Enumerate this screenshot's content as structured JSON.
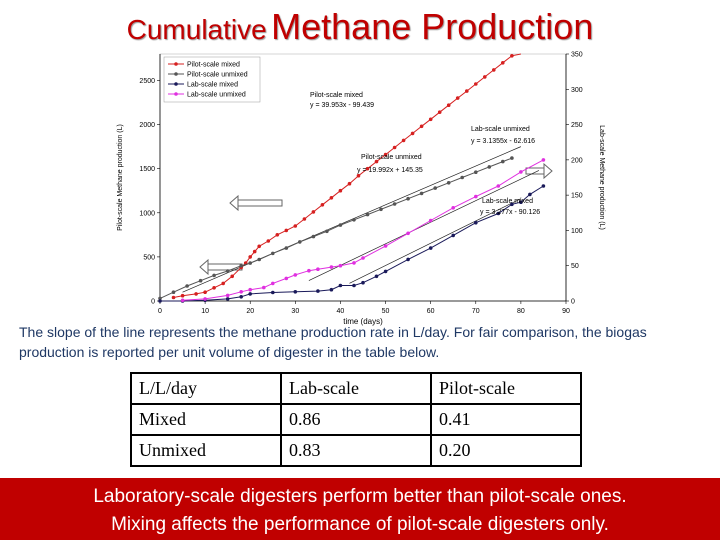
{
  "title": {
    "part1": "Cumulative",
    "part2": "Methane Production"
  },
  "chart_data": {
    "type": "line",
    "xlabel": "time (days)",
    "ylabel_left": "Pilot-scale Methane production (L)",
    "ylabel_right": "Lab-scale Methane production (L)",
    "xlim": [
      0,
      90
    ],
    "ylim_left": [
      0,
      2800
    ],
    "ylim_right": [
      0,
      350
    ],
    "xticks": [
      0,
      10,
      20,
      30,
      40,
      50,
      60,
      70,
      80,
      90
    ],
    "yticks_left": [
      0,
      500,
      1000,
      1500,
      2000,
      2500
    ],
    "yticks_right": [
      0,
      50,
      100,
      150,
      200,
      250,
      300,
      350
    ],
    "legend_position": "top-left",
    "series": [
      {
        "name": "Pilot-scale mixed",
        "axis": "left",
        "color": "#d62020",
        "x": [
          3,
          5,
          8,
          10,
          12,
          14,
          16,
          18,
          19,
          20,
          21,
          22,
          24,
          26,
          28,
          30,
          32,
          34,
          36,
          38,
          40,
          42,
          44,
          46,
          48,
          50,
          52,
          54,
          56,
          58,
          60,
          62,
          64,
          66,
          68,
          70,
          72,
          74,
          76,
          78,
          80
        ],
        "y": [
          40,
          60,
          80,
          100,
          150,
          200,
          280,
          380,
          430,
          500,
          560,
          620,
          680,
          750,
          800,
          850,
          930,
          1010,
          1090,
          1170,
          1250,
          1330,
          1420,
          1500,
          1580,
          1660,
          1740,
          1820,
          1900,
          1980,
          2060,
          2140,
          2220,
          2300,
          2380,
          2460,
          2540,
          2620,
          2700,
          2780,
          2860
        ]
      },
      {
        "name": "Pilot-scale unmixed",
        "axis": "left",
        "color": "#555555",
        "x": [
          0,
          3,
          6,
          9,
          12,
          15,
          18,
          20,
          22,
          25,
          28,
          31,
          34,
          37,
          40,
          43,
          46,
          49,
          52,
          55,
          58,
          61,
          64,
          67,
          70,
          73,
          76,
          78
        ],
        "y": [
          30,
          100,
          170,
          230,
          290,
          340,
          400,
          430,
          470,
          540,
          600,
          670,
          730,
          790,
          860,
          920,
          980,
          1040,
          1100,
          1160,
          1220,
          1280,
          1340,
          1400,
          1460,
          1520,
          1580,
          1620
        ]
      },
      {
        "name": "Lab-scale mixed",
        "axis": "right",
        "color": "#1a1a5a",
        "x": [
          0,
          5,
          10,
          15,
          18,
          20,
          25,
          30,
          35,
          38,
          40,
          43,
          45,
          48,
          50,
          55,
          60,
          65,
          70,
          75,
          78,
          80,
          82,
          85
        ],
        "y": [
          0,
          0,
          1,
          3,
          6,
          10,
          12,
          13,
          14,
          16,
          22,
          22,
          26,
          35,
          42,
          59,
          75,
          93,
          111,
          124,
          137,
          140,
          151,
          163
        ]
      },
      {
        "name": "Lab-scale unmixed",
        "axis": "right",
        "color": "#e030e0",
        "x": [
          5,
          10,
          15,
          18,
          20,
          23,
          25,
          28,
          30,
          33,
          35,
          38,
          40,
          43,
          45,
          50,
          55,
          60,
          65,
          70,
          75,
          80,
          85
        ],
        "y": [
          1,
          3,
          8,
          13,
          16,
          19,
          25,
          32,
          37,
          43,
          45,
          48,
          50,
          54,
          61,
          78,
          96,
          114,
          132,
          148,
          163,
          183,
          200
        ]
      }
    ],
    "annotations": [
      {
        "text": "Pilot-scale mixed",
        "series": "Pilot-scale mixed"
      },
      {
        "text": "y = 39.953x - 99.439",
        "series": "Pilot-scale mixed"
      },
      {
        "text": "Pilot-scale unmixed",
        "series": "Pilot-scale unmixed"
      },
      {
        "text": "y = 19.992x + 145.35",
        "series": "Pilot-scale unmixed"
      },
      {
        "text": "Lab-scale unmixed",
        "series": "Lab-scale unmixed"
      },
      {
        "text": "y = 3.1355x - 62.616",
        "series": "Lab-scale unmixed"
      },
      {
        "text": "Lab-scale mixed",
        "series": "Lab-scale mixed"
      },
      {
        "text": "y = 3.277x - 90.126",
        "series": "Lab-scale mixed"
      }
    ]
  },
  "caption": "The slope of the line represents the methane production rate in L/day. For fair comparison, the biogas production is reported per unit volume of digester in the table below.",
  "table": {
    "header": [
      "L/L/day",
      "Lab-scale",
      "Pilot-scale"
    ],
    "rows": [
      [
        "Mixed",
        "0.86",
        "0.41"
      ],
      [
        "Unmixed",
        "0.83",
        "0.20"
      ]
    ]
  },
  "conclusion": {
    "line1": "Laboratory-scale digesters perform better than pilot-scale ones.",
    "line2": "Mixing affects the performance of pilot-scale digesters only."
  }
}
